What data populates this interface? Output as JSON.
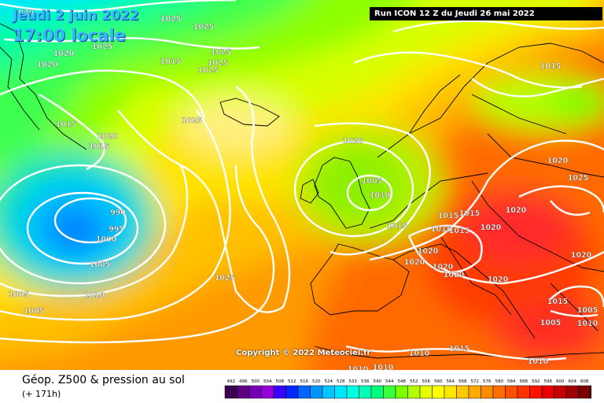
{
  "header": {
    "date_label": "Jeudi 2 juin 2022",
    "time_label": "17:00 locale",
    "run_label": "Run ICON 12 Z du Jeudi 26 mai 2022"
  },
  "copyright": "Copyright © 2022 Meteociel.fr",
  "footer": {
    "title": "Géop. Z500 & pression au sol",
    "subtitle": "(+ 171h)"
  },
  "legend": {
    "ticks": [
      "492",
      "496",
      "500",
      "504",
      "508",
      "512",
      "516",
      "520",
      "524",
      "528",
      "532",
      "536",
      "540",
      "544",
      "548",
      "552",
      "556",
      "560",
      "564",
      "568",
      "572",
      "576",
      "580",
      "584",
      "588",
      "592",
      "596",
      "600",
      "604",
      "608",
      "612"
    ],
    "colors": [
      "#3c0050",
      "#5a0080",
      "#7800b4",
      "#9600dc",
      "#3c00ff",
      "#0028ff",
      "#0064ff",
      "#0096ff",
      "#00c8ff",
      "#00e6ff",
      "#00ffe6",
      "#00ffb4",
      "#00ff78",
      "#3cff3c",
      "#78ff00",
      "#b4ff00",
      "#e6ff00",
      "#ffff00",
      "#ffe600",
      "#ffc800",
      "#ffaa00",
      "#ff8c00",
      "#ff6e00",
      "#ff5000",
      "#ff3200",
      "#ff1400",
      "#e60000",
      "#c80000",
      "#a00000",
      "#780000",
      "#140000"
    ]
  },
  "isobar_labels": [
    "1020",
    "1025",
    "1025",
    "1020",
    "1020",
    "1015",
    "1025",
    "1025",
    "1025",
    "1025",
    "1025",
    "1015",
    "1015",
    "1020",
    "1025",
    "1020",
    "1005",
    "1010",
    "990",
    "995",
    "1000",
    "1005",
    "1025",
    "1015",
    "1015",
    "1015",
    "1015",
    "1020",
    "1020",
    "1020",
    "1020",
    "1020",
    "1020",
    "1020",
    "1020",
    "1020",
    "1010",
    "1005",
    "1005",
    "1005",
    "1015",
    "1010",
    "1005",
    "1010",
    "1010",
    "1015",
    "1010",
    "1010",
    "1015",
    "1015"
  ],
  "colors": {
    "isobar": "#ffffff",
    "coast": "#000000",
    "date_text": "#3ab8ff"
  }
}
